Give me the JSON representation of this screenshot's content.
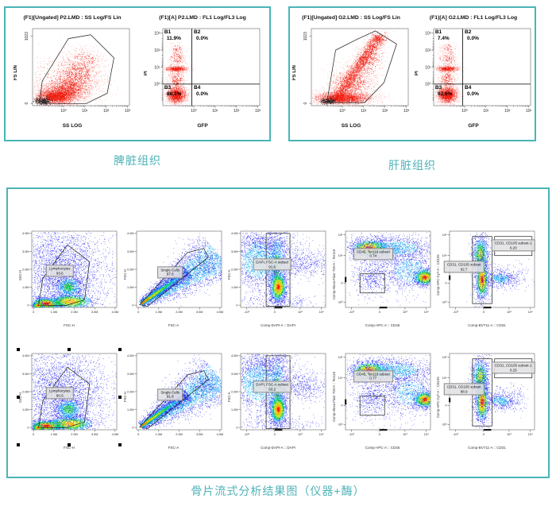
{
  "colors": {
    "panel_border": "#4ab5b5",
    "caption_text": "#4fb3b9",
    "scatter_red": "#ee1b0e",
    "heat_palette": [
      "#1a1aee",
      "#00a8f0",
      "#00c83c",
      "#b8e400",
      "#ffb400",
      "#ff1e00"
    ]
  },
  "chart_data": {
    "type": "scatter",
    "description": "Flow cytometry analysis figure: two tissue panels (scatter + quadrant stats) and a 2x5 gating-strategy density panel",
    "top_panels": [
      {
        "caption": "脾脏组织",
        "plots": [
          {
            "kind": "spleen_fs",
            "plot_type": "scatter",
            "title": "(F1)[Ungated] P2.LMD : SS Log/FS Lin",
            "xlabel": "SS LOG",
            "ylabel": "FS LIN",
            "xticks": [
              "10⁰",
              "10¹",
              "10²",
              "10³"
            ],
            "yticks": [
              "1023",
              "0"
            ]
          },
          {
            "kind": "pi_gfp",
            "plot_type": "quadrant-scatter",
            "title": "(F1)[A] P2.LMD : FL1 Log/FL3 Log",
            "xlabel": "GFP",
            "ylabel": "PI",
            "xticks": [
              "10⁰",
              "10¹",
              "10²",
              "10³"
            ],
            "yticks": [
              "10³",
              "10²",
              "10¹",
              "10⁰"
            ],
            "quadrants": [
              {
                "name": "B1",
                "value": "11.9%"
              },
              {
                "name": "B2",
                "value": "0.0%"
              },
              {
                "name": "B3",
                "value": "88.1%"
              },
              {
                "name": "B4",
                "value": "0.0%"
              }
            ]
          }
        ]
      },
      {
        "caption": "肝脏组织",
        "plots": [
          {
            "kind": "liver_fs",
            "plot_type": "scatter",
            "title": "(F1)[Ungated] G2.LMD : SS Log/FS Lin",
            "xlabel": "SS LOG",
            "ylabel": "FS LIN",
            "xticks": [
              "10⁰",
              "10¹",
              "10²",
              "10³"
            ],
            "yticks": [
              "1023",
              "0"
            ]
          },
          {
            "kind": "pi_gfp",
            "plot_type": "quadrant-scatter",
            "title": "(F1)[A] G2.LMD : FL1 Log/FL3 Log",
            "xlabel": "GFP",
            "ylabel": "PI",
            "xticks": [
              "10⁰",
              "10¹",
              "10²",
              "10³"
            ],
            "yticks": [
              "10³",
              "10²",
              "10¹",
              "10⁰"
            ],
            "quadrants": [
              {
                "name": "B1",
                "value": "7.4%"
              },
              {
                "name": "B2",
                "value": "0.0%"
              },
              {
                "name": "B3",
                "value": "92.6%"
              },
              {
                "name": "B4",
                "value": "0.0%"
              }
            ]
          }
        ]
      }
    ],
    "bottom_panel": {
      "caption": "骨片流式分析结果图（仪器+酶）",
      "rows": [
        [
          {
            "kind": "lymph",
            "plot_type": "density",
            "xlabel": "FSC-H",
            "ylabel": "SSC-H",
            "xticks": [
              "0",
              "1.0M",
              "2.0M",
              "3.0M",
              "4.0M"
            ],
            "yticks": [
              "4.0M",
              "3.0M",
              "2.0M",
              "1.0M",
              "0"
            ],
            "gates": [
              {
                "label": "Lymphocytes",
                "value": "93.6"
              }
            ]
          },
          {
            "kind": "singlets",
            "plot_type": "density",
            "xlabel": "FSC-A",
            "ylabel": "FSC-H",
            "xticks": [
              "0",
              "1.0M",
              "2.0M",
              "3.0M",
              "4.0M"
            ],
            "yticks": [
              "4.0M",
              "3.0M",
              "2.0M",
              "1.0M",
              "0"
            ],
            "gates": [
              {
                "label": "Single Cells",
                "value": "87.6"
              }
            ]
          },
          {
            "kind": "dapi",
            "plot_type": "density",
            "xlabel": "Comp-DAPI-A :: DAPI",
            "ylabel": "FSC-A",
            "xticks": [
              "-10³",
              "0",
              "10³",
              "10⁴"
            ],
            "yticks": [
              "4.0M",
              "3.0M",
              "2.0M",
              "1.0M",
              "0"
            ],
            "gates": [
              {
                "label": "DAPI, FSC-A subset",
                "value": "91.6"
              }
            ]
          },
          {
            "kind": "cd45",
            "plot_type": "density",
            "xlabel": "Comp-APC-A :: CD45",
            "ylabel": "Comp-Alexa Fluor 700-A :: Ter119",
            "xticks": [
              "-10³",
              "0",
              "10³",
              "10⁴"
            ],
            "yticks": [
              "10⁵",
              "10⁴",
              "0",
              "-10³"
            ],
            "gates": [
              {
                "label": "CD45, Ter119 subset",
                "value": "0.74"
              }
            ]
          },
          {
            "kind": "cd31",
            "plot_type": "density",
            "xlabel": "Comp-BV711-A :: CD31",
            "ylabel": "Comp-APC-Cy7-A :: CD105",
            "xticks": [
              "-10³",
              "0",
              "10³",
              "10⁴"
            ],
            "yticks": [
              "10⁵",
              "10⁴",
              "0",
              "-10³"
            ],
            "gates": [
              {
                "label": "CD31, CD105 subset",
                "value": "92.7"
              },
              {
                "label": "CD31, CD105 subset-1",
                "value": "0.20"
              }
            ]
          }
        ],
        [
          {
            "kind": "lymph",
            "plot_type": "density",
            "selected": true,
            "xlabel": "FSC-H",
            "ylabel": "SSC-H",
            "xticks": [
              "0",
              "1.0M",
              "2.0M",
              "3.0M",
              "4.0M"
            ],
            "yticks": [
              "4.0M",
              "3.0M",
              "2.0M",
              "1.0M",
              "0"
            ],
            "gates": [
              {
                "label": "Lymphocytes",
                "value": "90.6"
              }
            ]
          },
          {
            "kind": "singlets",
            "plot_type": "density",
            "xlabel": "FSC-A",
            "ylabel": "FSC-H",
            "xticks": [
              "0",
              "1.0M",
              "2.0M",
              "3.0M",
              "4.0M"
            ],
            "yticks": [
              "4.0M",
              "3.0M",
              "2.0M",
              "1.0M",
              "0"
            ],
            "gates": [
              {
                "label": "Single Cells",
                "value": "91.8"
              }
            ]
          },
          {
            "kind": "dapi",
            "plot_type": "density",
            "xlabel": "Comp-DAPI-A :: DAPI",
            "ylabel": "FSC-A",
            "xticks": [
              "-10³",
              "0",
              "10³",
              "10⁴"
            ],
            "yticks": [
              "4.0M",
              "3.0M",
              "2.0M",
              "1.0M",
              "0"
            ],
            "gates": [
              {
                "label": "DAPI, FSC-A subset",
                "value": "93.2"
              }
            ]
          },
          {
            "kind": "cd45",
            "plot_type": "density",
            "xlabel": "Comp-APC-A :: CD45",
            "ylabel": "Comp-Alexa Fluor 700-A :: Ter119",
            "xticks": [
              "-10³",
              "0",
              "10³",
              "10⁴"
            ],
            "yticks": [
              "10⁵",
              "10⁴",
              "0",
              "-10³"
            ],
            "gates": [
              {
                "label": "CD45, Ter119 subset",
                "value": "0.77"
              }
            ]
          },
          {
            "kind": "cd31",
            "plot_type": "density",
            "xlabel": "Comp-BV711-A :: CD31",
            "ylabel": "Comp-APC-Cy7-A :: CD105",
            "xticks": [
              "-10³",
              "0",
              "10³",
              "10⁴"
            ],
            "yticks": [
              "10⁵",
              "10⁴",
              "0",
              "-10³"
            ],
            "gates": [
              {
                "label": "CD31, CD105 subset",
                "value": "88.9"
              },
              {
                "label": "CD31, CD105 subset-1",
                "value": "0.25"
              }
            ]
          }
        ]
      ]
    }
  }
}
